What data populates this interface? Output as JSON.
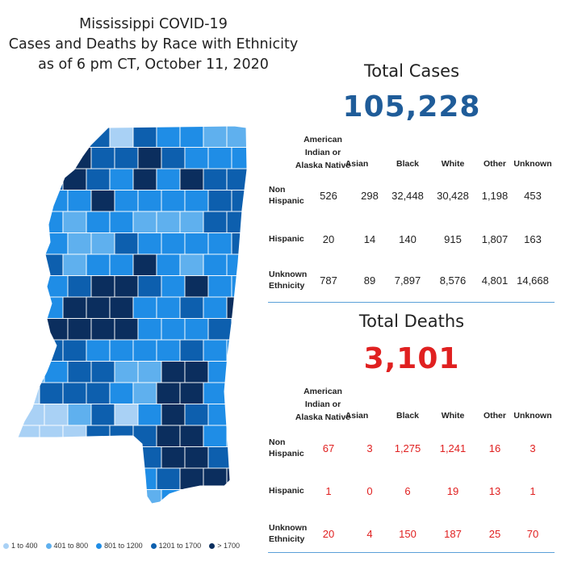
{
  "title": {
    "line1": "Mississippi COVID-19",
    "line2": "Cases and Deaths by Race with Ethnicity",
    "line3": "as of 6 pm CT, October 11, 2020"
  },
  "legend": [
    {
      "label": "1 to 400",
      "color": "#a9d1f5"
    },
    {
      "label": "401 to 800",
      "color": "#5fb0ee"
    },
    {
      "label": "801 to 1200",
      "color": "#1f8de6"
    },
    {
      "label": "1201 to 1700",
      "color": "#0d5fae"
    },
    {
      "label": "> 1700",
      "color": "#0b2e5e"
    }
  ],
  "columns": [
    "American Indian or Alaska Native",
    "Asian",
    "Black",
    "White",
    "Other",
    "Unknown"
  ],
  "column_header": {
    "ai_line1": "American",
    "ai_line2": "Indian or",
    "ai_line3": "Alaska Native",
    "asian": "Asian",
    "black": "Black",
    "white": "White",
    "other": "Other",
    "unknown": "Unknown"
  },
  "row_labels": {
    "non_hispanic_1": "Non",
    "non_hispanic_2": "Hispanic",
    "hispanic": "Hispanic",
    "unknown_1": "Unknown",
    "unknown_2": "Ethnicity"
  },
  "cases": {
    "label": "Total Cases",
    "total": "105,228",
    "color": "#1f5c99",
    "rows": [
      {
        "name": "Non Hispanic",
        "values": [
          "526",
          "298",
          "32,448",
          "30,428",
          "1,198",
          "453"
        ]
      },
      {
        "name": "Hispanic",
        "values": [
          "20",
          "14",
          "140",
          "915",
          "1,807",
          "163"
        ]
      },
      {
        "name": "Unknown Ethnicity",
        "values": [
          "787",
          "89",
          "7,897",
          "8,576",
          "4,801",
          "14,668"
        ]
      }
    ]
  },
  "deaths": {
    "label": "Total Deaths",
    "total": "3,101",
    "color": "#e02020",
    "rows": [
      {
        "name": "Non Hispanic",
        "values": [
          "67",
          "3",
          "1,275",
          "1,241",
          "16",
          "3"
        ]
      },
      {
        "name": "Hispanic",
        "values": [
          "1",
          "0",
          "6",
          "19",
          "13",
          "1"
        ]
      },
      {
        "name": "Unknown Ethnicity",
        "values": [
          "20",
          "4",
          "150",
          "187",
          "25",
          "70"
        ]
      }
    ]
  }
}
